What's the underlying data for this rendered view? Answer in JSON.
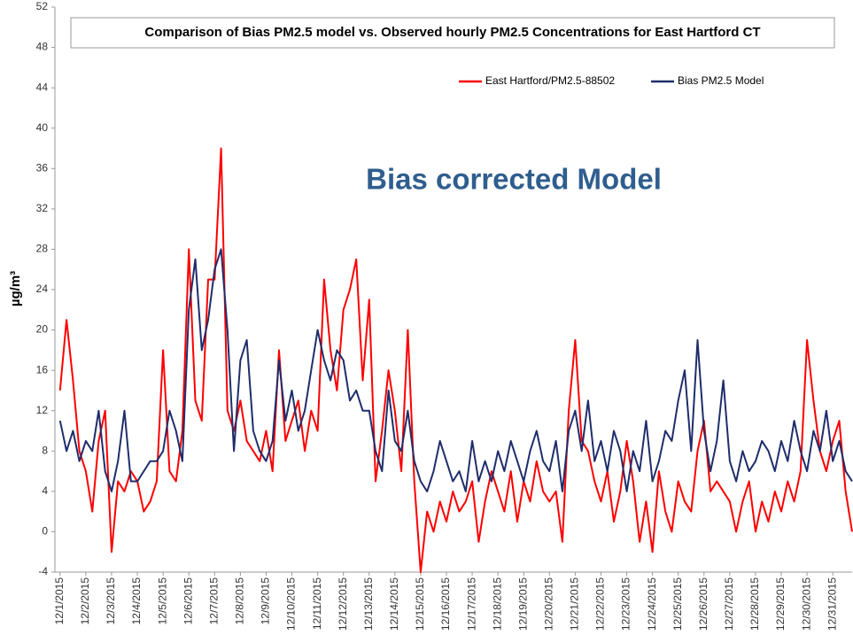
{
  "chart_data": {
    "type": "line",
    "title": "Comparison of Bias PM2.5 model vs. Observed hourly PM2.5 Concentrations for East Hartford CT",
    "y_label": "µg/m³",
    "annotation": "Bias corrected  Model",
    "legend": "top-right",
    "grid": false,
    "ylim": [
      -4,
      52
    ],
    "yticks": [
      -4,
      0,
      4,
      8,
      12,
      16,
      20,
      24,
      28,
      32,
      36,
      40,
      44,
      48,
      52
    ],
    "xlim": [
      -0.2,
      30.75
    ],
    "xticks": [
      {
        "value": 0,
        "label": "12/1/2015"
      },
      {
        "value": 1,
        "label": "12/2/2015"
      },
      {
        "value": 2,
        "label": "12/3/2015"
      },
      {
        "value": 3,
        "label": "12/4/2015"
      },
      {
        "value": 4,
        "label": "12/5/2015"
      },
      {
        "value": 5,
        "label": "12/6/2015"
      },
      {
        "value": 6,
        "label": "12/7/2015"
      },
      {
        "value": 7,
        "label": "12/8/2015"
      },
      {
        "value": 8,
        "label": "12/9/2015"
      },
      {
        "value": 9,
        "label": "12/10/2015"
      },
      {
        "value": 10,
        "label": "12/11/2015"
      },
      {
        "value": 11,
        "label": "12/12/2015"
      },
      {
        "value": 12,
        "label": "12/13/2015"
      },
      {
        "value": 13,
        "label": "12/14/2015"
      },
      {
        "value": 14,
        "label": "12/15/2015"
      },
      {
        "value": 15,
        "label": "12/16/2015"
      },
      {
        "value": 16,
        "label": "12/17/2015"
      },
      {
        "value": 17,
        "label": "12/18/2015"
      },
      {
        "value": 18,
        "label": "12/19/2015"
      },
      {
        "value": 19,
        "label": "12/20/2015"
      },
      {
        "value": 20,
        "label": "12/21/2015"
      },
      {
        "value": 21,
        "label": "12/22/2015"
      },
      {
        "value": 22,
        "label": "12/23/2015"
      },
      {
        "value": 23,
        "label": "12/24/2015"
      },
      {
        "value": 24,
        "label": "12/25/2015"
      },
      {
        "value": 25,
        "label": "12/26/2015"
      },
      {
        "value": 26,
        "label": "12/27/2015"
      },
      {
        "value": 27,
        "label": "12/28/2015"
      },
      {
        "value": 28,
        "label": "12/29/2015"
      },
      {
        "value": 29,
        "label": "12/30/2015"
      },
      {
        "value": 30,
        "label": "12/31/2015"
      }
    ],
    "x": [
      0,
      0.25,
      0.5,
      0.75,
      1,
      1.25,
      1.5,
      1.75,
      2,
      2.25,
      2.5,
      2.75,
      3,
      3.25,
      3.5,
      3.75,
      4,
      4.25,
      4.5,
      4.75,
      5,
      5.25,
      5.5,
      5.75,
      6,
      6.25,
      6.5,
      6.75,
      7,
      7.25,
      7.5,
      7.75,
      8,
      8.25,
      8.5,
      8.75,
      9,
      9.25,
      9.5,
      9.75,
      10,
      10.25,
      10.5,
      10.75,
      11,
      11.25,
      11.5,
      11.75,
      12,
      12.25,
      12.5,
      12.75,
      13,
      13.25,
      13.5,
      13.75,
      14,
      14.25,
      14.5,
      14.75,
      15,
      15.25,
      15.5,
      15.75,
      16,
      16.25,
      16.5,
      16.75,
      17,
      17.25,
      17.5,
      17.75,
      18,
      18.25,
      18.5,
      18.75,
      19,
      19.25,
      19.5,
      19.75,
      20,
      20.25,
      20.5,
      20.75,
      21,
      21.25,
      21.5,
      21.75,
      22,
      22.25,
      22.5,
      22.75,
      23,
      23.25,
      23.5,
      23.75,
      24,
      24.25,
      24.5,
      24.75,
      25,
      25.25,
      25.5,
      25.75,
      26,
      26.25,
      26.5,
      26.75,
      27,
      27.25,
      27.5,
      27.75,
      28,
      28.25,
      28.5,
      28.75,
      29,
      29.25,
      29.5,
      29.75,
      30,
      30.25,
      30.5,
      30.75
    ],
    "series": [
      {
        "name": "East Hartford/PM2.5-88502",
        "color": "#ff0000",
        "values": [
          14,
          21,
          15,
          8,
          6,
          2,
          9,
          12,
          -2,
          5,
          4,
          6,
          5,
          2,
          3,
          5,
          18,
          6,
          5,
          10,
          28,
          13,
          11,
          25,
          25,
          38,
          12,
          10,
          13,
          9,
          8,
          7,
          10,
          6,
          18,
          9,
          11,
          13,
          8,
          12,
          10,
          25,
          18,
          14,
          22,
          24,
          27,
          15,
          23,
          5,
          10,
          16,
          12,
          6,
          20,
          5,
          -4,
          2,
          0,
          3,
          1,
          4,
          2,
          3,
          5,
          -1,
          3,
          6,
          4,
          2,
          6,
          1,
          5,
          3,
          7,
          4,
          3,
          4,
          -1,
          12,
          19,
          9,
          8,
          5,
          3,
          6,
          1,
          4,
          9,
          5,
          -1,
          3,
          -2,
          6,
          2,
          0,
          5,
          3,
          2,
          8,
          11,
          4,
          5,
          4,
          3,
          0,
          3,
          5,
          0,
          3,
          1,
          4,
          2,
          5,
          3,
          6,
          19,
          13,
          8,
          6,
          9,
          11,
          4,
          0
        ]
      },
      {
        "name": "Bias PM2.5 Model",
        "color": "#1f2d6b",
        "values": [
          11,
          8,
          10,
          7,
          9,
          8,
          12,
          6,
          4,
          7,
          12,
          5,
          5,
          6,
          7,
          7,
          8,
          12,
          10,
          7,
          22,
          27,
          18,
          21,
          26,
          28,
          20,
          8,
          17,
          19,
          10,
          8,
          7,
          9,
          17,
          11,
          14,
          10,
          12,
          16,
          20,
          17,
          15,
          18,
          17,
          13,
          14,
          12,
          12,
          8,
          6,
          14,
          9,
          8,
          12,
          7,
          5,
          4,
          6,
          9,
          7,
          5,
          6,
          4,
          9,
          5,
          7,
          5,
          8,
          6,
          9,
          7,
          5,
          8,
          10,
          7,
          6,
          9,
          4,
          10,
          12,
          8,
          13,
          7,
          9,
          6,
          10,
          8,
          4,
          8,
          6,
          11,
          5,
          7,
          10,
          9,
          13,
          16,
          8,
          19,
          10,
          6,
          9,
          15,
          7,
          5,
          8,
          6,
          7,
          9,
          8,
          6,
          9,
          7,
          11,
          8,
          6,
          10,
          8,
          12,
          7,
          9,
          6,
          5
        ]
      }
    ]
  }
}
